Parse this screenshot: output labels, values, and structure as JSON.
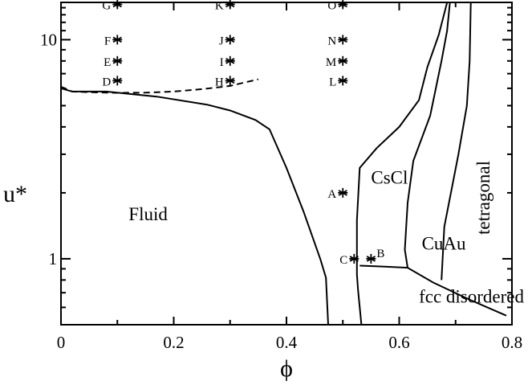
{
  "chart_data": {
    "type": "scatter",
    "xlabel": "ϕ",
    "ylabel": "u*",
    "xlim": [
      0,
      0.8
    ],
    "ylim": [
      0.5,
      14.8
    ],
    "yscale": "log",
    "grid": false,
    "x_ticks": [
      0,
      0.2,
      0.4,
      0.6,
      0.8
    ],
    "x_tick_labels": [
      "0",
      "0.2",
      "0.4",
      "0.6",
      "0.8"
    ],
    "y_ticks": [
      1,
      10
    ],
    "y_tick_labels": [
      "1",
      "10"
    ],
    "points": [
      {
        "label": "A",
        "x": 0.5,
        "y": 2.0
      },
      {
        "label": "B",
        "x": 0.55,
        "y": 1.0
      },
      {
        "label": "C",
        "x": 0.52,
        "y": 1.0
      },
      {
        "label": "D",
        "x": 0.1,
        "y": 6.5
      },
      {
        "label": "E",
        "x": 0.1,
        "y": 8.0
      },
      {
        "label": "F",
        "x": 0.1,
        "y": 10.0
      },
      {
        "label": "G",
        "x": 0.1,
        "y": 14.5
      },
      {
        "label": "H",
        "x": 0.3,
        "y": 6.5
      },
      {
        "label": "I",
        "x": 0.3,
        "y": 8.0
      },
      {
        "label": "J",
        "x": 0.3,
        "y": 10.0
      },
      {
        "label": "K",
        "x": 0.3,
        "y": 14.5
      },
      {
        "label": "L",
        "x": 0.5,
        "y": 6.5
      },
      {
        "label": "M",
        "x": 0.5,
        "y": 8.0
      },
      {
        "label": "N",
        "x": 0.5,
        "y": 10.0
      },
      {
        "label": "O",
        "x": 0.5,
        "y": 14.5
      }
    ],
    "regions": [
      {
        "text": "Fluid",
        "x": 0.12,
        "y": 1.5
      },
      {
        "text": "CsCl",
        "x": 0.55,
        "y": 2.2
      },
      {
        "text": "CuAu",
        "x": 0.64,
        "y": 1.1
      },
      {
        "text": "tetragonal",
        "x": 0.76,
        "y": 1.9,
        "rotate": -90
      },
      {
        "text": "fcc disordered",
        "x": 0.635,
        "y": 0.63
      }
    ],
    "boundaries": [
      {
        "style": "solid",
        "points": [
          [
            0,
            6.0
          ],
          [
            0.02,
            5.8
          ],
          [
            0.08,
            5.8
          ],
          [
            0.17,
            5.5
          ],
          [
            0.26,
            5.05
          ],
          [
            0.3,
            4.75
          ],
          [
            0.345,
            4.3
          ],
          [
            0.37,
            3.9
          ],
          [
            0.4,
            2.6
          ],
          [
            0.43,
            1.65
          ],
          [
            0.46,
            1.0
          ],
          [
            0.47,
            0.82
          ],
          [
            0.474,
            0.5
          ]
        ]
      },
      {
        "style": "dashed",
        "points": [
          [
            0,
            6.1
          ],
          [
            0.02,
            5.8
          ],
          [
            0.06,
            5.75
          ],
          [
            0.1,
            5.72
          ],
          [
            0.15,
            5.73
          ],
          [
            0.2,
            5.8
          ],
          [
            0.25,
            5.95
          ],
          [
            0.3,
            6.15
          ],
          [
            0.35,
            6.6
          ]
        ]
      },
      {
        "style": "solid",
        "points": [
          [
            0.533,
            0.5
          ],
          [
            0.527,
            0.72
          ],
          [
            0.525,
            0.85
          ],
          [
            0.525,
            1.5
          ],
          [
            0.53,
            2.6
          ],
          [
            0.56,
            3.2
          ],
          [
            0.6,
            4.0
          ],
          [
            0.635,
            5.3
          ],
          [
            0.65,
            7.5
          ],
          [
            0.67,
            10.5
          ],
          [
            0.685,
            14.8
          ]
        ]
      },
      {
        "style": "solid",
        "points": [
          [
            0.53,
            0.93
          ],
          [
            0.575,
            0.92
          ],
          [
            0.615,
            0.91
          ],
          [
            0.61,
            1.1
          ],
          [
            0.615,
            1.8
          ],
          [
            0.625,
            2.8
          ],
          [
            0.655,
            4.5
          ],
          [
            0.675,
            8.0
          ],
          [
            0.685,
            11.0
          ],
          [
            0.69,
            14.8
          ]
        ]
      },
      {
        "style": "solid",
        "points": [
          [
            0.675,
            0.8
          ],
          [
            0.68,
            1.4
          ],
          [
            0.705,
            3.0
          ],
          [
            0.72,
            5.0
          ],
          [
            0.725,
            8.0
          ],
          [
            0.727,
            14.8
          ]
        ]
      },
      {
        "style": "solid",
        "points": [
          [
            0.615,
            0.91
          ],
          [
            0.66,
            0.78
          ],
          [
            0.725,
            0.65
          ],
          [
            0.79,
            0.55
          ]
        ]
      }
    ]
  }
}
